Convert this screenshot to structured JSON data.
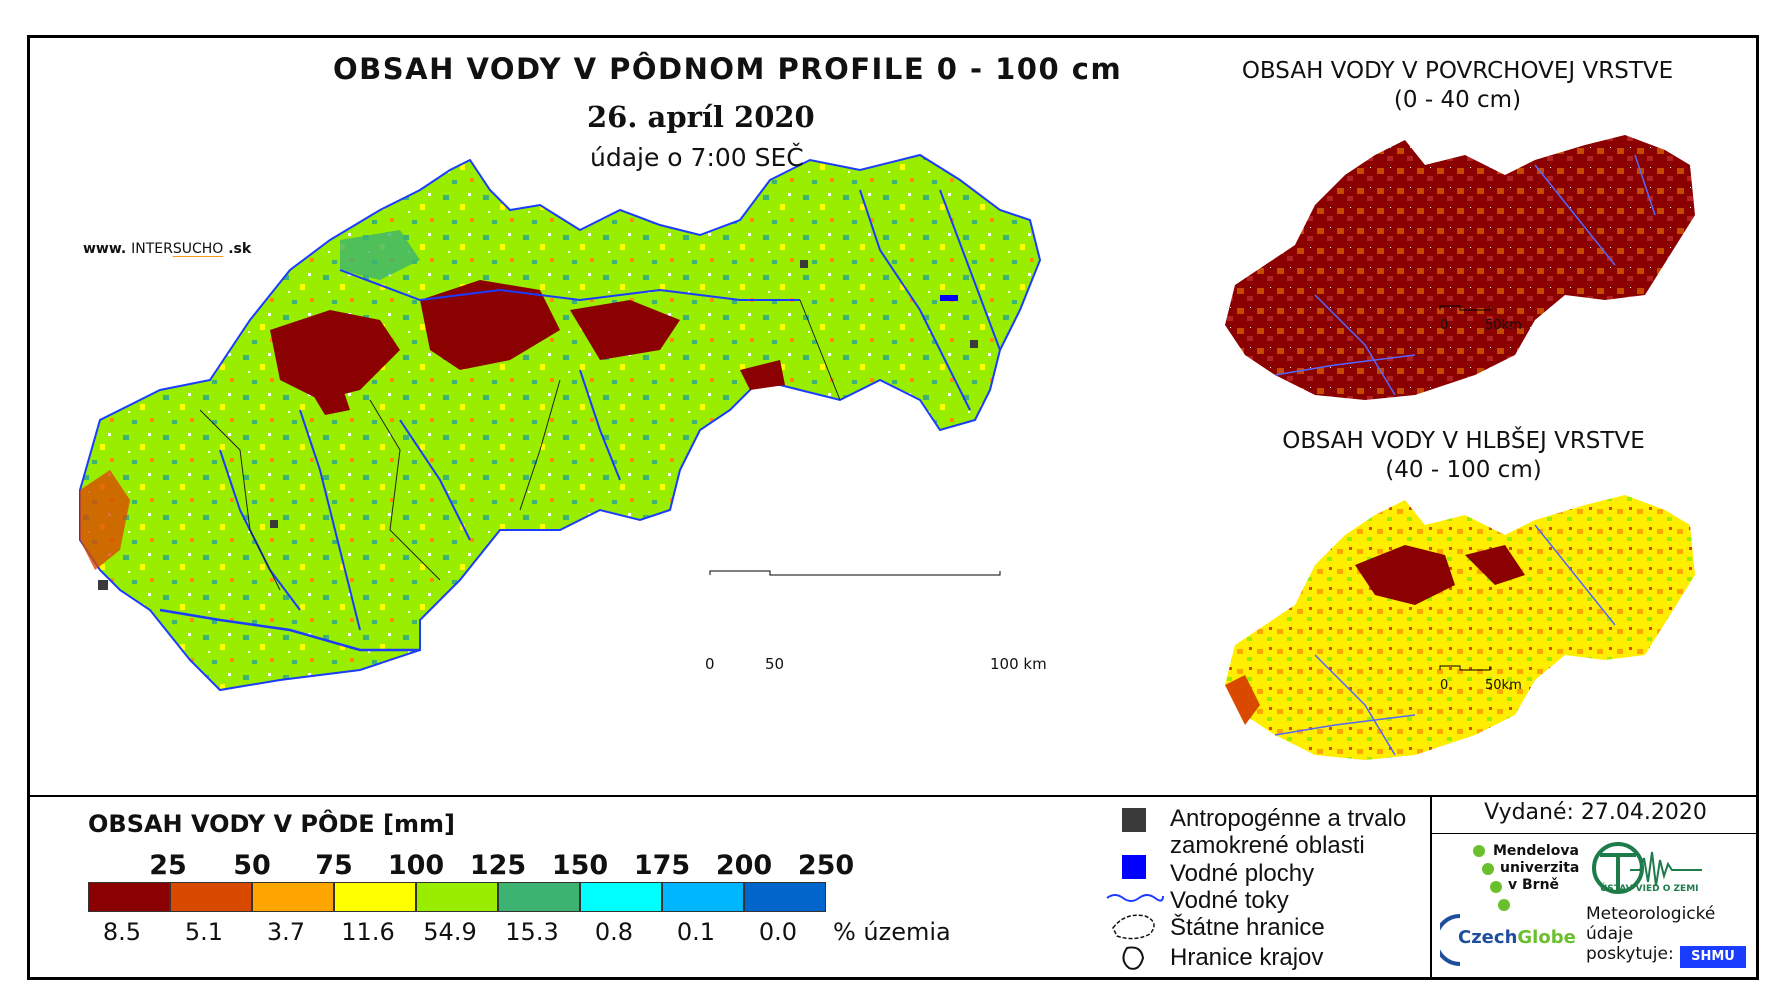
{
  "main_map": {
    "title": "OBSAH VODY V PÔDNOM PROFILE 0 - 100 cm",
    "date": "26. apríl 2020",
    "time": "údaje o 7:00 SEČ",
    "website_prefix": "www.",
    "website_brand_a": "INTER",
    "website_brand_b": "SUCHO",
    "website_suffix": ".sk",
    "scale_labels": [
      "0",
      "50",
      "100 km"
    ]
  },
  "surface_map": {
    "title": "OBSAH VODY V POVRCHOVEJ VRSTVE",
    "range": "(0 - 40 cm)",
    "scale_labels": [
      "0",
      "50km"
    ]
  },
  "deep_map": {
    "title": "OBSAH VODY V HLBŠEJ VRSTVE",
    "range": "(40 - 100 cm)",
    "scale_labels": [
      "0",
      "50km"
    ]
  },
  "legend": {
    "title": "OBSAH VODY V PÔDE [mm]",
    "thresholds": [
      "25",
      "50",
      "75",
      "100",
      "125",
      "150",
      "175",
      "200",
      "250"
    ],
    "classes": [
      {
        "color": "#8b0000",
        "percent": "8.5"
      },
      {
        "color": "#d94a00",
        "percent": "5.1"
      },
      {
        "color": "#ffa500",
        "percent": "3.7"
      },
      {
        "color": "#ffff00",
        "percent": "11.6"
      },
      {
        "color": "#99ee00",
        "percent": "54.9"
      },
      {
        "color": "#3cb371",
        "percent": "15.3"
      },
      {
        "color": "#00ffff",
        "percent": "0.8"
      },
      {
        "color": "#00b7ff",
        "percent": "0.1"
      },
      {
        "color": "#0066cc",
        "percent": "0.0"
      }
    ],
    "percent_unit": "% územia"
  },
  "symbols": {
    "anthropogenic_line1": "Antropogénne a trvalo",
    "anthropogenic_line2": "zamokrené oblasti",
    "water_bodies": "Vodné plochy",
    "rivers": "Vodné toky",
    "state_borders": "Štátne hranice",
    "region_borders": "Hranice krajov"
  },
  "credits": {
    "issued": "Vydané: 27.04.2020",
    "mendel_1": "Mendelova",
    "mendel_2": "univerzita",
    "mendel_3": "v Brně",
    "czechglobe_a": "Czech",
    "czechglobe_b": "Globe",
    "ustav": "ÚSTAV VIED O ZEMI",
    "meteo_1": "Meteorologické",
    "meteo_2": "údaje",
    "meteo_3": "poskytuje:",
    "shmu": "SHMU"
  },
  "colors": {
    "anthropogenic": "#3a3a3a",
    "water": "#0000ff",
    "river": "#1a3cff"
  }
}
